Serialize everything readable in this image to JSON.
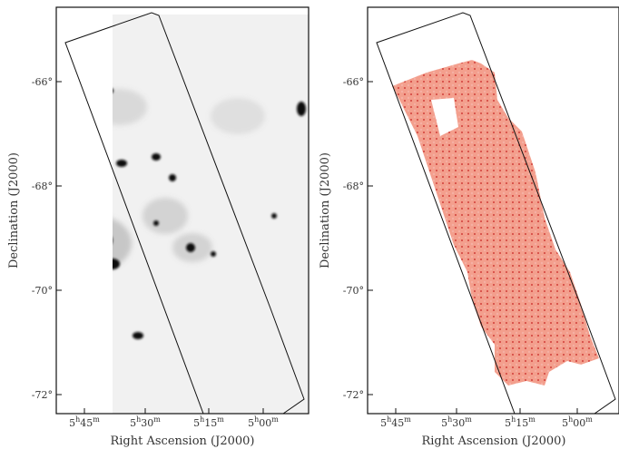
{
  "panels": [
    {
      "x_axis_label": "Right Ascension (J2000)",
      "y_axis_label": "Declination (J2000)",
      "x_ticks": [
        [
          "5",
          "h",
          "45",
          "m"
        ],
        [
          "5",
          "h",
          "30",
          "m"
        ],
        [
          "5",
          "h",
          "15",
          "m"
        ],
        [
          "5",
          "h",
          "00",
          "m"
        ]
      ],
      "y_ticks": [
        "-66°",
        "-68°",
        "-70°",
        "-72°"
      ]
    },
    {
      "x_axis_label": "Right Ascension (J2000)",
      "y_axis_label": "Declination (J2000)",
      "x_ticks": [
        [
          "5",
          "h",
          "45",
          "m"
        ],
        [
          "5",
          "h",
          "30",
          "m"
        ],
        [
          "5",
          "h",
          "15",
          "m"
        ],
        [
          "5",
          "h",
          "00",
          "m"
        ]
      ],
      "y_ticks": [
        "-66°",
        "-68°",
        "-70°",
        "-72°"
      ]
    }
  ]
}
